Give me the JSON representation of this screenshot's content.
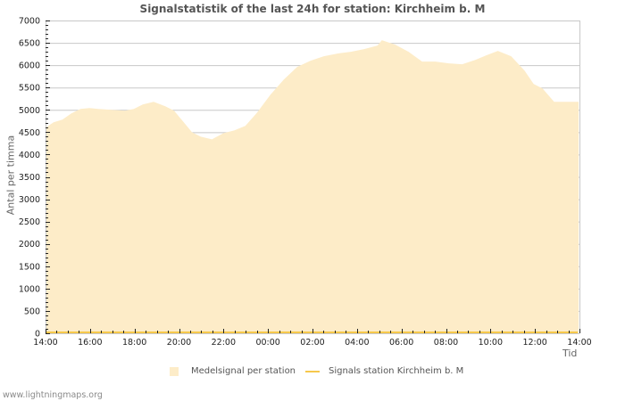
{
  "header": {
    "title": "Signalstatistik of the last 24h for station: Kirchheim b. M"
  },
  "footer": {
    "credit": "www.lightningmaps.org"
  },
  "colors": {
    "area_fill": "#fdecc8",
    "station_line": "#f6c84c",
    "grid": "#c8c8c8",
    "frame": "#c8c8c8",
    "title": "#555555"
  },
  "chart_data": {
    "type": "area",
    "title": "Signalstatistik of the last 24h for station: Kirchheim b. M",
    "xlabel": "Tid",
    "ylabel": "Antal per timma",
    "ylim": [
      0,
      7000
    ],
    "yticks": [
      0,
      500,
      1000,
      1500,
      2000,
      2500,
      3000,
      3500,
      4000,
      4500,
      5000,
      5500,
      6000,
      6500,
      7000
    ],
    "xticks": [
      "14:00",
      "16:00",
      "18:00",
      "20:00",
      "22:00",
      "00:00",
      "02:00",
      "04:00",
      "06:00",
      "08:00",
      "10:00",
      "12:00",
      "14:00"
    ],
    "grid": true,
    "legend_position": "bottom",
    "legend": [
      "Medelsignal per station",
      "Signals station Kirchheim b. M"
    ],
    "series": [
      {
        "name": "Medelsignal per station",
        "style": "area",
        "x_hours": [
          0,
          0.36,
          0.76,
          1.16,
          1.57,
          1.97,
          2.37,
          2.97,
          3.57,
          3.97,
          4.37,
          4.86,
          5.38,
          5.78,
          6.18,
          6.58,
          6.98,
          7.48,
          8.0,
          8.48,
          8.98,
          9.51,
          10.11,
          10.71,
          11.31,
          11.91,
          12.51,
          13.12,
          13.72,
          14.32,
          14.92,
          15.12,
          15.72,
          16.32,
          16.93,
          17.53,
          18.13,
          18.73,
          19.33,
          19.81,
          20.33,
          20.93,
          21.53,
          21.94,
          22.34,
          22.86
        ],
        "values": [
          4600,
          4720,
          4780,
          4920,
          5020,
          5040,
          5020,
          5000,
          4980,
          5020,
          5120,
          5180,
          5080,
          4980,
          4740,
          4500,
          4400,
          4340,
          4480,
          4540,
          4640,
          4940,
          5340,
          5680,
          5960,
          6100,
          6200,
          6260,
          6300,
          6360,
          6440,
          6560,
          6460,
          6300,
          6080,
          6080,
          6040,
          6020,
          6120,
          6220,
          6320,
          6200,
          5880,
          5580,
          5480,
          5180
        ]
      },
      {
        "name": "Signals station Kirchheim b. M",
        "style": "line",
        "values_constant": 0
      }
    ]
  }
}
